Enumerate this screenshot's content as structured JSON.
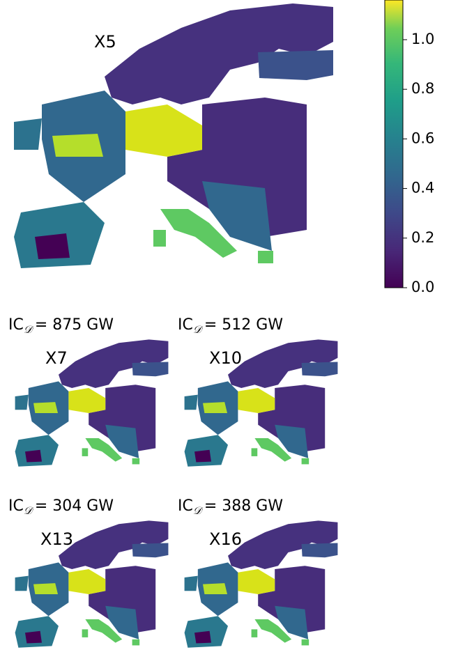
{
  "maps": [
    {
      "label": "X5"
    },
    {
      "label": "X7",
      "caption": {
        "prefix": "IC",
        "sub": "𝒟",
        "rest": "= 875 GW"
      }
    },
    {
      "label": "X10",
      "caption": {
        "prefix": "IC",
        "sub": "𝒟",
        "rest": "= 512 GW"
      }
    },
    {
      "label": "X13",
      "caption": {
        "prefix": "IC",
        "sub": "𝒟",
        "rest": "= 304 GW"
      }
    },
    {
      "label": "X16",
      "caption": {
        "prefix": "IC",
        "sub": "𝒟",
        "rest": "= 388 GW"
      }
    }
  ],
  "colorbar": {
    "lim": [
      0,
      1.16
    ],
    "ticks": [
      {
        "value": 0,
        "label": "0.0"
      },
      0.2,
      0.4,
      0.6,
      0.8,
      {
        "value": 1,
        "label": "1.0"
      }
    ]
  }
}
